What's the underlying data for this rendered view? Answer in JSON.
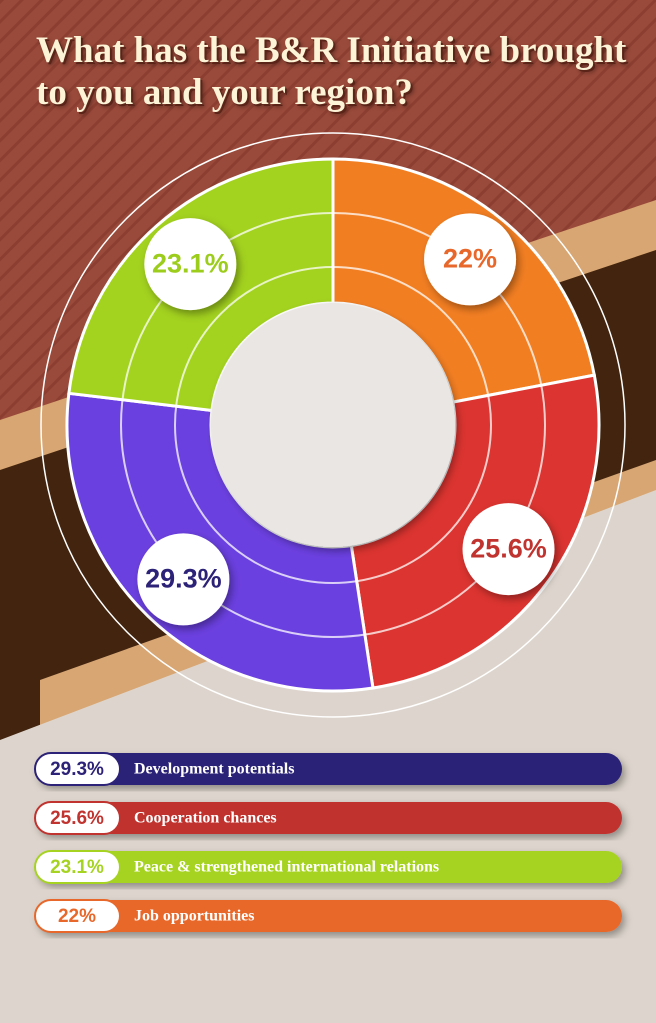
{
  "chart_data": {
    "type": "pie",
    "donut": true,
    "title": "What has the B&R Initiative brought to you and your region?",
    "categories": [
      "Development potentials",
      "Cooperation chances",
      "Peace & strengthened international relations",
      "Job opportunities"
    ],
    "values": [
      29.3,
      25.6,
      23.1,
      22
    ],
    "value_labels": [
      "29.3%",
      "25.6%",
      "23.1%",
      "22%"
    ],
    "colors": [
      "#6b40e0",
      "#dc3430",
      "#a3d21f",
      "#f27e22"
    ],
    "label_colors": [
      "#2c2277",
      "#c0332f",
      "#9ccc1c",
      "#e8672a"
    ],
    "legend_colors": [
      "#2c2277",
      "#c0332f",
      "#a6d322",
      "#e8672a"
    ]
  }
}
